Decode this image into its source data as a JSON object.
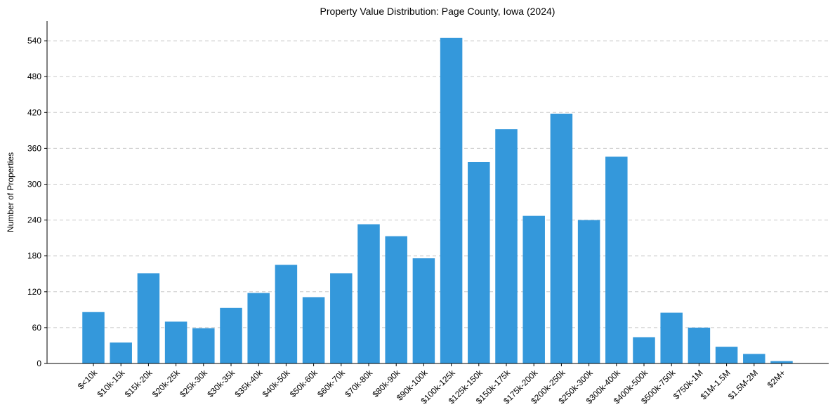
{
  "chart_data": {
    "type": "bar",
    "title": "Property Value Distribution: Page County, Iowa (2024)",
    "xlabel": "",
    "ylabel": "Number of Properties",
    "categories": [
      "$<10k",
      "$10k-15k",
      "$15k-20k",
      "$20k-25k",
      "$25k-30k",
      "$30k-35k",
      "$35k-40k",
      "$40k-50k",
      "$50k-60k",
      "$60k-70k",
      "$70k-80k",
      "$80k-90k",
      "$90k-100k",
      "$100k-125k",
      "$125k-150k",
      "$150k-175k",
      "$175k-200k",
      "$200k-250k",
      "$250k-300k",
      "$300k-400k",
      "$400k-500k",
      "$500k-750k",
      "$750k-1M",
      "$1M-1.5M",
      "$1.5M-2M",
      "$2M+"
    ],
    "values": [
      86,
      35,
      151,
      70,
      59,
      93,
      118,
      165,
      111,
      151,
      233,
      213,
      176,
      545,
      337,
      392,
      247,
      418,
      240,
      346,
      44,
      85,
      60,
      28,
      16,
      4
    ],
    "ylim": [
      0,
      573
    ],
    "yticks": [
      0,
      60,
      120,
      180,
      240,
      300,
      360,
      420,
      480,
      540
    ],
    "grid": true,
    "bar_color": "#3498db"
  }
}
